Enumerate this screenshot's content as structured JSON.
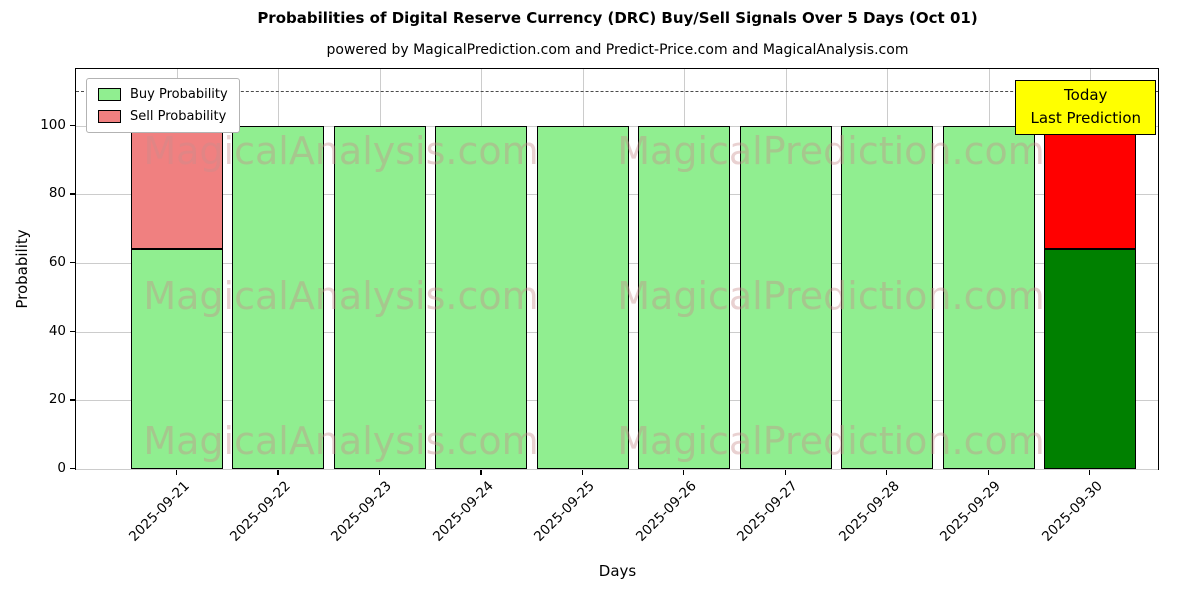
{
  "chart_data": {
    "type": "bar",
    "stacked": true,
    "title": "Probabilities of Digital Reserve Currency (DRC) Buy/Sell Signals Over 5 Days (Oct 01)",
    "subtitle": "powered by MagicalPrediction.com and Predict-Price.com and MagicalAnalysis.com",
    "xlabel": "Days",
    "ylabel": "Probability",
    "ylim": [
      0,
      116.5
    ],
    "yticks": [
      0,
      20,
      40,
      60,
      80,
      100
    ],
    "grid": true,
    "categories": [
      "2025-09-21",
      "2025-09-22",
      "2025-09-23",
      "2025-09-24",
      "2025-09-25",
      "2025-09-26",
      "2025-09-27",
      "2025-09-28",
      "2025-09-29",
      "2025-09-30"
    ],
    "series": [
      {
        "name": "Buy Probability",
        "values": [
          64,
          100,
          100,
          100,
          100,
          100,
          100,
          100,
          100,
          64
        ],
        "colors": [
          "#90EE90",
          "#90EE90",
          "#90EE90",
          "#90EE90",
          "#90EE90",
          "#90EE90",
          "#90EE90",
          "#90EE90",
          "#90EE90",
          "#008000"
        ]
      },
      {
        "name": "Sell Probability",
        "values": [
          36,
          0,
          0,
          0,
          0,
          0,
          0,
          0,
          0,
          36
        ],
        "colors": [
          "#F08080",
          "#F08080",
          "#F08080",
          "#F08080",
          "#F08080",
          "#F08080",
          "#F08080",
          "#F08080",
          "#F08080",
          "#FF0000"
        ]
      }
    ],
    "dashed_line_y": 110,
    "legend": {
      "position": "upper left",
      "items": [
        {
          "label": "Buy Probability",
          "color": "#90EE90"
        },
        {
          "label": "Sell Probability",
          "color": "#F08080"
        }
      ]
    },
    "annotation": {
      "lines": [
        "Today",
        "Last Prediction"
      ],
      "bg": "#FFFF00",
      "border": "#000000"
    },
    "watermarks": [
      "MagicalAnalysis.com",
      "MagicalPrediction.com"
    ]
  }
}
